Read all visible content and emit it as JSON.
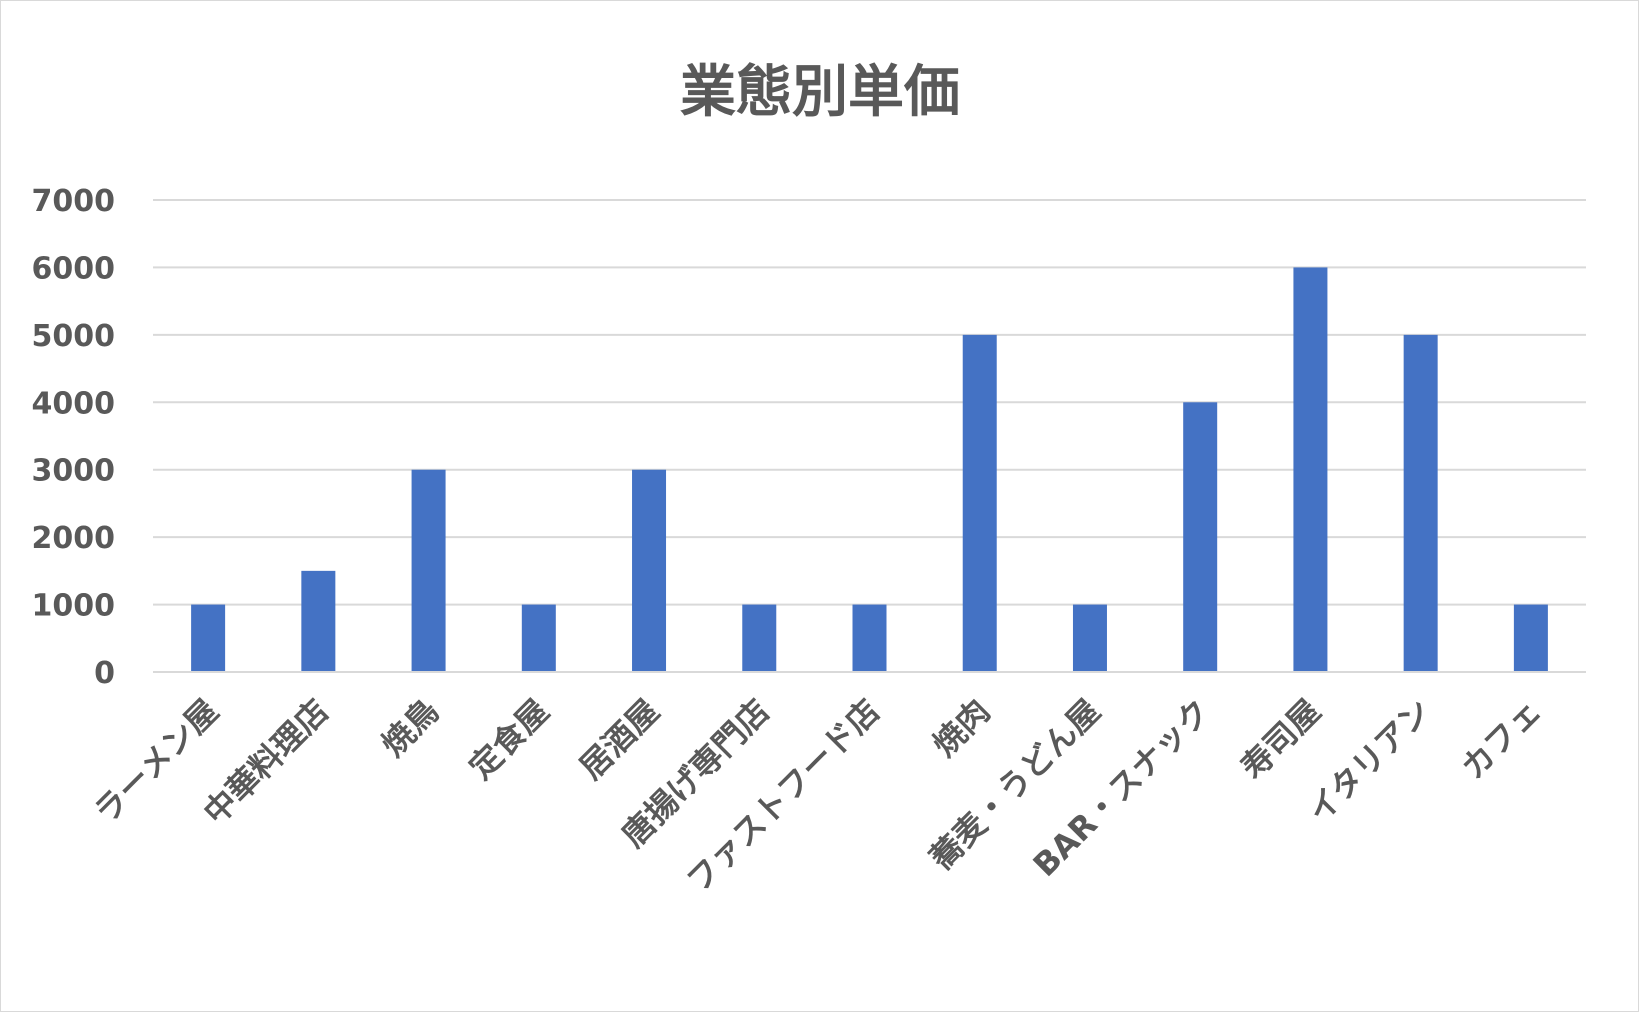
{
  "chart_data": {
    "type": "bar",
    "title": "業態別単価",
    "categories": [
      "ラーメン屋",
      "中華料理店",
      "焼鳥",
      "定食屋",
      "居酒屋",
      "唐揚げ専門店",
      "ファストフード店",
      "焼肉",
      "蕎麦・うどん屋",
      "BAR・スナック",
      "寿司屋",
      "イタリアン",
      "カフェ"
    ],
    "series": [
      {
        "values": [
          1000,
          1500,
          3000,
          1000,
          3000,
          1000,
          1000,
          5000,
          1000,
          4000,
          6000,
          5000,
          1000
        ]
      }
    ],
    "ylim": [
      0,
      7000
    ],
    "yticks": [
      "0",
      "1000",
      "2000",
      "3000",
      "4000",
      "5000",
      "6000",
      "7000"
    ],
    "grid": true,
    "bar_color": "#4472C4"
  }
}
